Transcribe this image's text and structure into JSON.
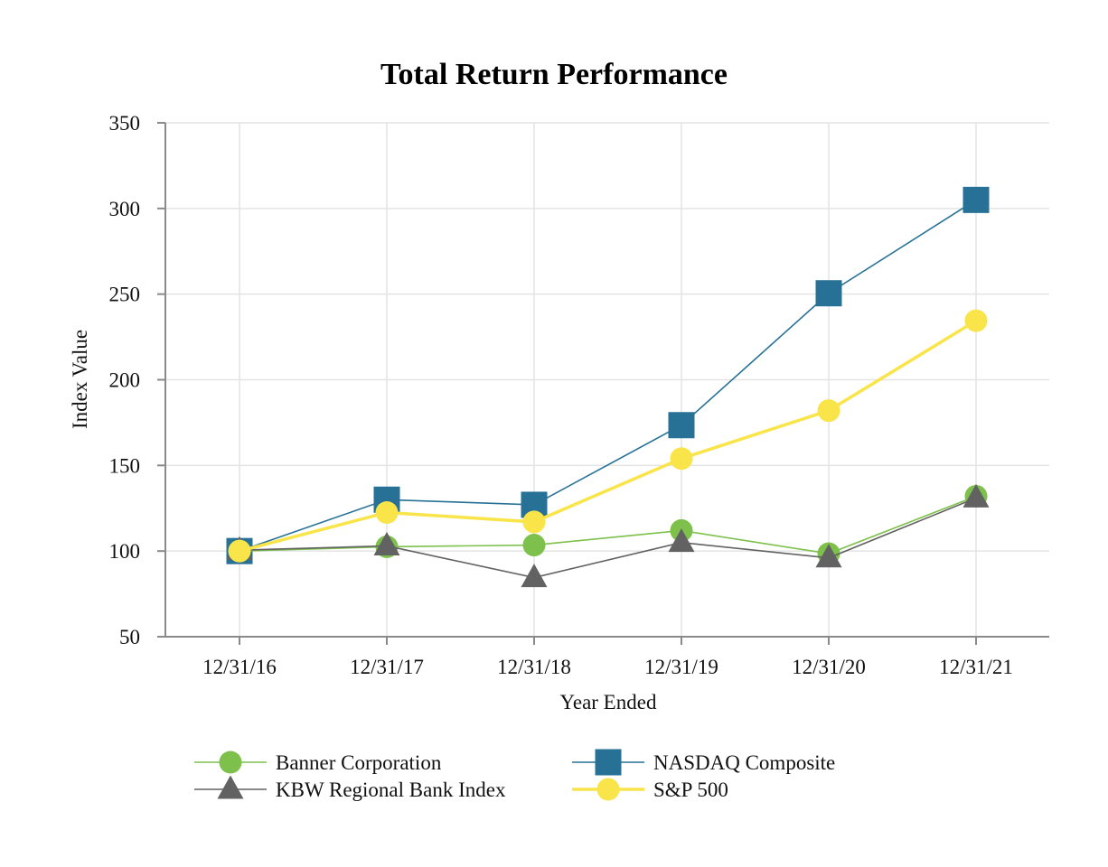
{
  "chart_data": {
    "type": "line",
    "title": "Total Return Performance",
    "xlabel": "Year Ended",
    "ylabel": "Index Value",
    "categories": [
      "12/31/16",
      "12/31/17",
      "12/31/18",
      "12/31/19",
      "12/31/20",
      "12/31/21"
    ],
    "ylim": [
      50,
      350
    ],
    "yticks": [
      50,
      100,
      150,
      200,
      250,
      300,
      350
    ],
    "grid": true,
    "legend_position": "bottom",
    "series": [
      {
        "name": "Banner Corporation",
        "marker": "circle",
        "color": "#7dc04b",
        "line_width": 1.6,
        "values": [
          100,
          102.5,
          103.5,
          112,
          98.5,
          132
        ]
      },
      {
        "name": "NASDAQ Composite",
        "marker": "square",
        "color": "#277196",
        "line_width": 1.6,
        "values": [
          100,
          130,
          127,
          173.5,
          250.5,
          305
        ]
      },
      {
        "name": "KBW Regional Bank Index",
        "marker": "triangle",
        "color": "#626262",
        "line_width": 1.6,
        "values": [
          100.5,
          103,
          84.5,
          105,
          96,
          131
        ]
      },
      {
        "name": "S&P 500",
        "marker": "circle",
        "color": "#f9e44a",
        "line_width": 3.5,
        "values": [
          100,
          122.5,
          117,
          154,
          182,
          234.5
        ]
      }
    ]
  }
}
